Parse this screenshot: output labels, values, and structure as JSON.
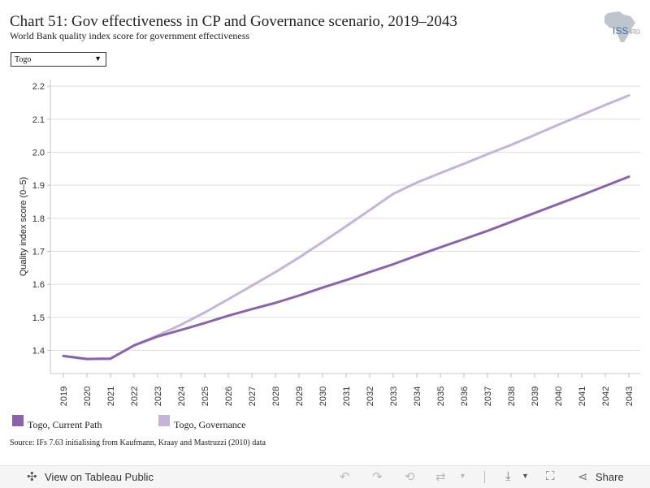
{
  "header": {
    "title": "Chart 51: Gov effectiveness in CP and Governance scenario, 2019–2043",
    "subtitle": "World Bank quality index score for government effectiveness",
    "logo_text": "ISS",
    "logo_text2": "AFRICA"
  },
  "filter": {
    "selected": "Togo"
  },
  "chart_data": {
    "type": "line",
    "title": "Chart 51: Gov effectiveness in CP and Governance scenario, 2019–2043",
    "ylabel": "Quality index score (0–5)",
    "xlabel": "",
    "ylim": [
      1.33,
      2.22
    ],
    "yticks": [
      1.4,
      1.5,
      1.6,
      1.7,
      1.8,
      1.9,
      2.0,
      2.1,
      2.2
    ],
    "ytick_labels": [
      "1.4",
      "1.5",
      "1.6",
      "1.7",
      "1.8",
      "1.9",
      "2.0",
      "2.1",
      "2.2"
    ],
    "x": [
      "2019",
      "2020",
      "2021",
      "2022",
      "2023",
      "2024",
      "2025",
      "2026",
      "2027",
      "2028",
      "2029",
      "2030",
      "2031",
      "2032",
      "2033",
      "2034",
      "2035",
      "2036",
      "2037",
      "2038",
      "2039",
      "2040",
      "2041",
      "2042",
      "2043"
    ],
    "grid": true,
    "legend_position": "bottom-left",
    "series": [
      {
        "name": "Togo, Current Path",
        "color": "#8a62ad",
        "values": [
          1.383,
          1.374,
          1.375,
          1.415,
          1.442,
          1.462,
          1.483,
          1.505,
          1.525,
          1.544,
          1.566,
          1.59,
          1.613,
          1.637,
          1.661,
          1.687,
          1.712,
          1.737,
          1.762,
          1.789,
          1.816,
          1.843,
          1.87,
          1.898,
          1.926
        ]
      },
      {
        "name": "Togo, Governance",
        "color": "#c4b4dc",
        "values": [
          1.383,
          1.374,
          1.375,
          1.415,
          1.445,
          1.478,
          1.515,
          1.555,
          1.596,
          1.637,
          1.681,
          1.728,
          1.776,
          1.825,
          1.874,
          1.908,
          1.937,
          1.965,
          1.994,
          2.022,
          2.052,
          2.083,
          2.113,
          2.143,
          2.172
        ]
      }
    ]
  },
  "footer": {
    "source": "Source: IFs 7.63 initialising from Kaufmann, Kraay and Mastruzzi (2010) data"
  },
  "toolbar": {
    "view_label": "View on Tableau Public",
    "share_label": "Share"
  }
}
